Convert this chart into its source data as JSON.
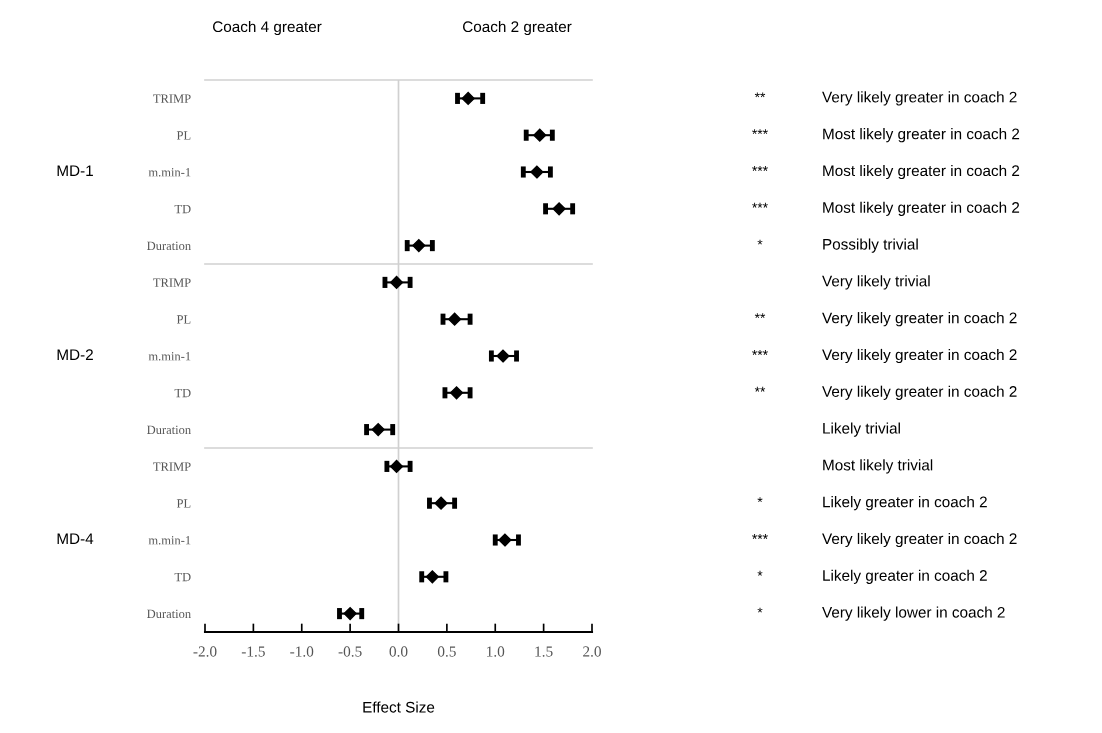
{
  "chart_data": {
    "type": "scatter",
    "orientation": "horizontal",
    "xlabel": "Effect Size",
    "categories": [
      "TRIMP",
      "PL",
      "m.min-1",
      "TD",
      "Duration",
      "TRIMP",
      "PL",
      "m.min-1",
      "TD",
      "Duration",
      "TRIMP",
      "PL",
      "m.min-1",
      "TD",
      "Duration"
    ],
    "color": "#000000",
    "marker": "diamond",
    "values": [
      0.72,
      1.46,
      1.43,
      1.66,
      0.21,
      -0.02,
      0.58,
      1.08,
      0.6,
      -0.21,
      -0.02,
      0.44,
      1.1,
      0.35,
      -0.5
    ],
    "errors": [
      [
        0.61,
        0.87
      ],
      [
        1.32,
        1.59
      ],
      [
        1.29,
        1.57
      ],
      [
        1.52,
        1.8
      ],
      [
        0.09,
        0.35
      ],
      [
        -0.14,
        0.12
      ],
      [
        0.46,
        0.74
      ],
      [
        0.96,
        1.22
      ],
      [
        0.48,
        0.74
      ],
      [
        -0.33,
        -0.06
      ],
      [
        -0.12,
        0.12
      ],
      [
        0.32,
        0.58
      ],
      [
        1.0,
        1.24
      ],
      [
        0.24,
        0.49
      ],
      [
        -0.61,
        -0.38
      ]
    ],
    "value_labels": [
      "**",
      "***",
      "***",
      "***",
      "*",
      null,
      "**",
      "***",
      "**",
      null,
      null,
      "*",
      "***",
      "*",
      "*"
    ],
    "xlim": [
      -2.0,
      2.0
    ],
    "xticks": [
      {
        "value": -2.0,
        "label": "-2.0"
      },
      {
        "value": -1.5,
        "label": "-1.5"
      },
      {
        "value": -1.0,
        "label": "-1.0"
      },
      {
        "value": -0.5,
        "label": "-0.5"
      },
      {
        "value": 0.0,
        "label": "0.0"
      },
      {
        "value": 0.5,
        "label": "0.5"
      },
      {
        "value": 1.0,
        "label": "1.0"
      },
      {
        "value": 1.5,
        "label": "1.5"
      },
      {
        "value": 2.0,
        "label": "2.0"
      }
    ],
    "ref_lines": [
      {
        "axis": "x",
        "value": 0,
        "color": "#d0d0d0"
      }
    ],
    "grid": false,
    "legend": false,
    "annotations": [
      "Coach 4 greater",
      "Coach 2 greater",
      "MD-1",
      "MD-2",
      "MD-4",
      "Very likely greater in coach 2",
      "Most likely greater in coach 2",
      "Most likely greater in coach 2",
      "Most likely greater in coach 2",
      "Possibly trivial",
      "Very likely trivial",
      "Very likely greater in coach 2",
      "Very likely greater in coach 2",
      "Very likely greater in coach 2",
      "Likely trivial",
      "Most likely trivial",
      "Likely greater in coach 2",
      "Very likely greater in coach 2",
      "Likely greater in coach 2",
      "Very likely lower in coach 2"
    ]
  }
}
